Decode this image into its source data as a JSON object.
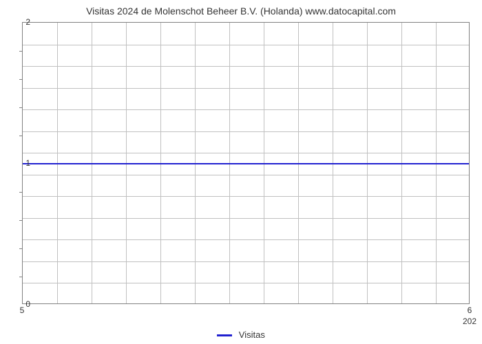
{
  "chart": {
    "type": "line",
    "title": "Visitas 2024 de Molenschot Beheer B.V. (Holanda) www.datocapital.com",
    "title_fontsize": 14,
    "title_color": "#333333",
    "background_color": "#ffffff",
    "plot_border_color": "#808080",
    "grid_color": "#c0c0c0",
    "x": {
      "lim": [
        5,
        6
      ],
      "major_ticks": [
        5,
        6
      ],
      "sub_label": "202",
      "grid_count": 13
    },
    "y": {
      "lim": [
        0,
        2
      ],
      "major_ticks": [
        0,
        1,
        2
      ],
      "minor_tick_count": 4,
      "grid_count": 13
    },
    "series": {
      "label": "Visitas",
      "color": "#2020d0",
      "line_width": 2,
      "value": 1
    },
    "legend": {
      "position": "bottom-center",
      "fontsize": 13
    }
  }
}
